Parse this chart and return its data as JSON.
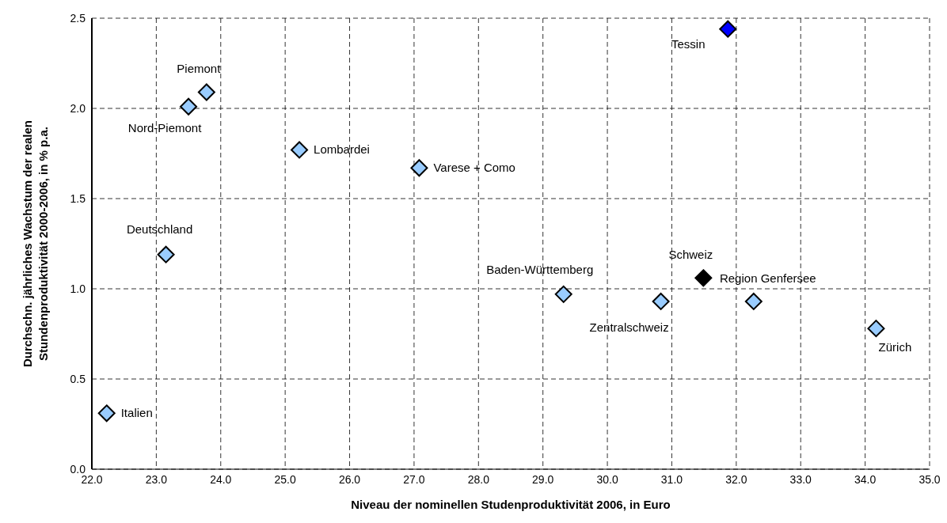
{
  "chart_data": {
    "type": "scatter",
    "xlabel": "Niveau der nominellen Studenproduktivität 2006, in Euro",
    "ylabel": "Durchschn. jährliches Wachstum der realen\nStundenproduktivität 2000-2006, in % p.a.",
    "x": [
      22.23,
      23.15,
      23.5,
      23.78,
      25.22,
      27.08,
      29.32,
      30.83,
      31.49,
      31.87,
      32.27,
      34.17
    ],
    "values": [
      0.31,
      1.19,
      2.01,
      2.09,
      1.77,
      1.67,
      0.97,
      0.93,
      1.06,
      2.44,
      0.93,
      0.78
    ],
    "colors": [
      "#99ccff",
      "#99ccff",
      "#99ccff",
      "#99ccff",
      "#99ccff",
      "#99ccff",
      "#99ccff",
      "#99ccff",
      "#000000",
      "#0000ff",
      "#99ccff",
      "#99ccff"
    ],
    "marker": "diamond",
    "grid": true,
    "xlim": [
      22,
      35
    ],
    "xticks": [
      {
        "value": 22,
        "label": "22.0"
      },
      {
        "value": 23,
        "label": "23.0"
      },
      {
        "value": 24,
        "label": "24.0"
      },
      {
        "value": 25,
        "label": "25.0"
      },
      {
        "value": 26,
        "label": "26.0"
      },
      {
        "value": 27,
        "label": "27.0"
      },
      {
        "value": 28,
        "label": "28.0"
      },
      {
        "value": 29,
        "label": "29.0"
      },
      {
        "value": 30,
        "label": "30.0"
      },
      {
        "value": 31,
        "label": "31.0"
      },
      {
        "value": 32,
        "label": "32.0"
      },
      {
        "value": 33,
        "label": "33.0"
      },
      {
        "value": 34,
        "label": "34.0"
      },
      {
        "value": 35,
        "label": "35.0"
      }
    ],
    "ylim": [
      0,
      2.5
    ],
    "yticks": [
      {
        "value": 0,
        "label": "0.0"
      },
      {
        "value": 0.5,
        "label": "0.5"
      },
      {
        "value": 1,
        "label": "1.0"
      },
      {
        "value": 1.5,
        "label": "1.5"
      },
      {
        "value": 2,
        "label": "2.0"
      },
      {
        "value": 2.5,
        "label": "2.5"
      }
    ],
    "annotations": [
      {
        "text": "Italien",
        "x": 22.23,
        "y": 0.31
      },
      {
        "text": "Deutschland",
        "x": 23.15,
        "y": 1.19
      },
      {
        "text": "Nord-Piemont",
        "x": 23.5,
        "y": 2.01
      },
      {
        "text": "Piemont",
        "x": 23.78,
        "y": 2.09
      },
      {
        "text": "Lombardei",
        "x": 25.22,
        "y": 1.77
      },
      {
        "text": "Varese + Como",
        "x": 27.08,
        "y": 1.67
      },
      {
        "text": "Baden-Württemberg",
        "x": 29.32,
        "y": 0.97
      },
      {
        "text": "Zentralschweiz",
        "x": 30.83,
        "y": 0.93
      },
      {
        "text": "Schweiz",
        "x": 31.49,
        "y": 1.06
      },
      {
        "text": "Tessin",
        "x": 31.87,
        "y": 2.44
      },
      {
        "text": "Region Genfersee",
        "x": 32.27,
        "y": 0.93
      },
      {
        "text": "Zürich",
        "x": 34.17,
        "y": 0.78
      }
    ]
  }
}
